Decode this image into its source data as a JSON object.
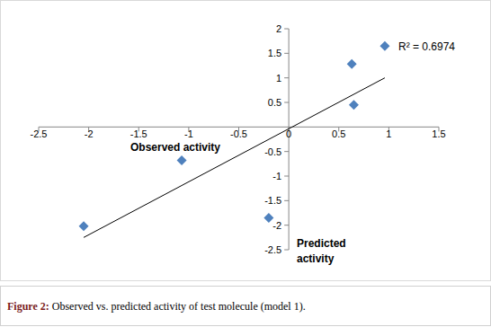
{
  "chart_data": {
    "type": "scatter",
    "caption": "Figure 2: Observed vs. predicted activity of test molecule (model 1).",
    "annotations": [
      "Observed activity",
      "Predicted activity",
      "R² = 0.6974"
    ],
    "xlim": [
      -2.5,
      1.5
    ],
    "xticks": [
      -2.5,
      -2,
      -1.5,
      -1,
      -0.5,
      0,
      0.5,
      1,
      1.5
    ],
    "ylim": [
      -2.5,
      2
    ],
    "yticks": [
      -2.5,
      -2,
      -1.5,
      -1,
      -0.5,
      0.5,
      1,
      1.5,
      2
    ],
    "grid": false,
    "series": [
      {
        "type": "scatter",
        "marker": "diamond",
        "color": "#4f81bd",
        "x": [
          -2.05,
          -1.07,
          -0.2,
          0.63,
          0.65,
          0.96
        ],
        "values": [
          -2.02,
          -0.68,
          -1.85,
          1.28,
          0.45,
          1.65
        ]
      },
      {
        "type": "line",
        "line_style": "solid",
        "color": "#000000",
        "x": [
          -2.05,
          0.96
        ],
        "values": [
          -2.25,
          1.0
        ]
      }
    ]
  }
}
